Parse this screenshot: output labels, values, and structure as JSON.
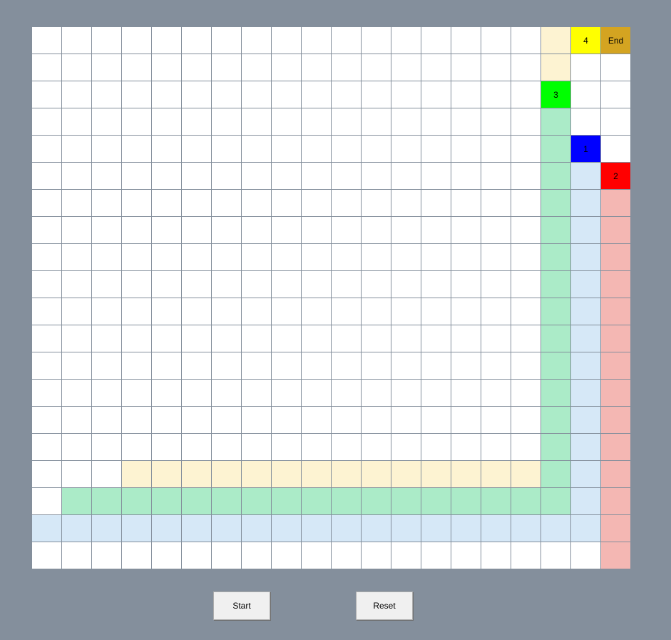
{
  "grid": {
    "rows": 20,
    "cols": 20,
    "palette": {
      "empty": "#ffffff",
      "path_yellow": "#fdf3d2",
      "path_green": "#abebc8",
      "path_blue": "#d6e8f7",
      "path_red": "#f4b7b3",
      "agent_1": "#0000ff",
      "agent_2": "#ff0000",
      "agent_3": "#00ff00",
      "agent_4": "#ffff00",
      "end": "#d4a421"
    },
    "paths": {
      "path_yellow": [
        [
          0,
          18
        ],
        [
          1,
          18
        ],
        [
          16,
          3
        ],
        [
          16,
          4
        ],
        [
          16,
          5
        ],
        [
          16,
          6
        ],
        [
          16,
          7
        ],
        [
          16,
          8
        ],
        [
          16,
          9
        ],
        [
          16,
          10
        ],
        [
          16,
          11
        ],
        [
          16,
          12
        ],
        [
          16,
          13
        ],
        [
          16,
          14
        ],
        [
          16,
          15
        ],
        [
          16,
          16
        ],
        [
          16,
          17
        ]
      ],
      "path_green": [
        [
          3,
          18
        ],
        [
          4,
          18
        ],
        [
          5,
          18
        ],
        [
          6,
          18
        ],
        [
          7,
          18
        ],
        [
          8,
          18
        ],
        [
          9,
          18
        ],
        [
          10,
          18
        ],
        [
          11,
          18
        ],
        [
          12,
          18
        ],
        [
          13,
          18
        ],
        [
          14,
          18
        ],
        [
          15,
          18
        ],
        [
          16,
          18
        ],
        [
          17,
          1
        ],
        [
          17,
          2
        ],
        [
          17,
          3
        ],
        [
          17,
          4
        ],
        [
          17,
          5
        ],
        [
          17,
          6
        ],
        [
          17,
          7
        ],
        [
          17,
          8
        ],
        [
          17,
          9
        ],
        [
          17,
          10
        ],
        [
          17,
          11
        ],
        [
          17,
          12
        ],
        [
          17,
          13
        ],
        [
          17,
          14
        ],
        [
          17,
          15
        ],
        [
          17,
          16
        ],
        [
          17,
          17
        ],
        [
          17,
          18
        ]
      ],
      "path_blue": [
        [
          5,
          19
        ],
        [
          6,
          19
        ],
        [
          7,
          19
        ],
        [
          8,
          19
        ],
        [
          9,
          19
        ],
        [
          10,
          19
        ],
        [
          11,
          19
        ],
        [
          12,
          19
        ],
        [
          13,
          19
        ],
        [
          14,
          19
        ],
        [
          15,
          19
        ],
        [
          16,
          19
        ],
        [
          17,
          19
        ],
        [
          18,
          0
        ],
        [
          18,
          1
        ],
        [
          18,
          2
        ],
        [
          18,
          3
        ],
        [
          18,
          4
        ],
        [
          18,
          5
        ],
        [
          18,
          6
        ],
        [
          18,
          7
        ],
        [
          18,
          8
        ],
        [
          18,
          9
        ],
        [
          18,
          10
        ],
        [
          18,
          11
        ],
        [
          18,
          12
        ],
        [
          18,
          13
        ],
        [
          18,
          14
        ],
        [
          18,
          15
        ],
        [
          18,
          16
        ],
        [
          18,
          17
        ],
        [
          18,
          18
        ],
        [
          18,
          19
        ]
      ],
      "path_red": [
        [
          6,
          20
        ],
        [
          7,
          20
        ],
        [
          8,
          20
        ],
        [
          9,
          20
        ],
        [
          10,
          20
        ],
        [
          11,
          20
        ],
        [
          12,
          20
        ],
        [
          13,
          20
        ],
        [
          14,
          20
        ],
        [
          15,
          20
        ],
        [
          16,
          20
        ],
        [
          17,
          20
        ],
        [
          18,
          20
        ],
        [
          19,
          20
        ]
      ]
    },
    "markers": [
      {
        "row": 4,
        "col": 19,
        "label": "1",
        "color_key": "agent_1"
      },
      {
        "row": 5,
        "col": 20,
        "label": "2",
        "color_key": "agent_2"
      },
      {
        "row": 2,
        "col": 18,
        "label": "3",
        "color_key": "agent_3"
      },
      {
        "row": 0,
        "col": 19,
        "label": "4",
        "color_key": "agent_4"
      },
      {
        "row": 0,
        "col": 20,
        "label": "End",
        "color_key": "end"
      }
    ]
  },
  "controls": {
    "start_label": "Start",
    "reset_label": "Reset"
  }
}
